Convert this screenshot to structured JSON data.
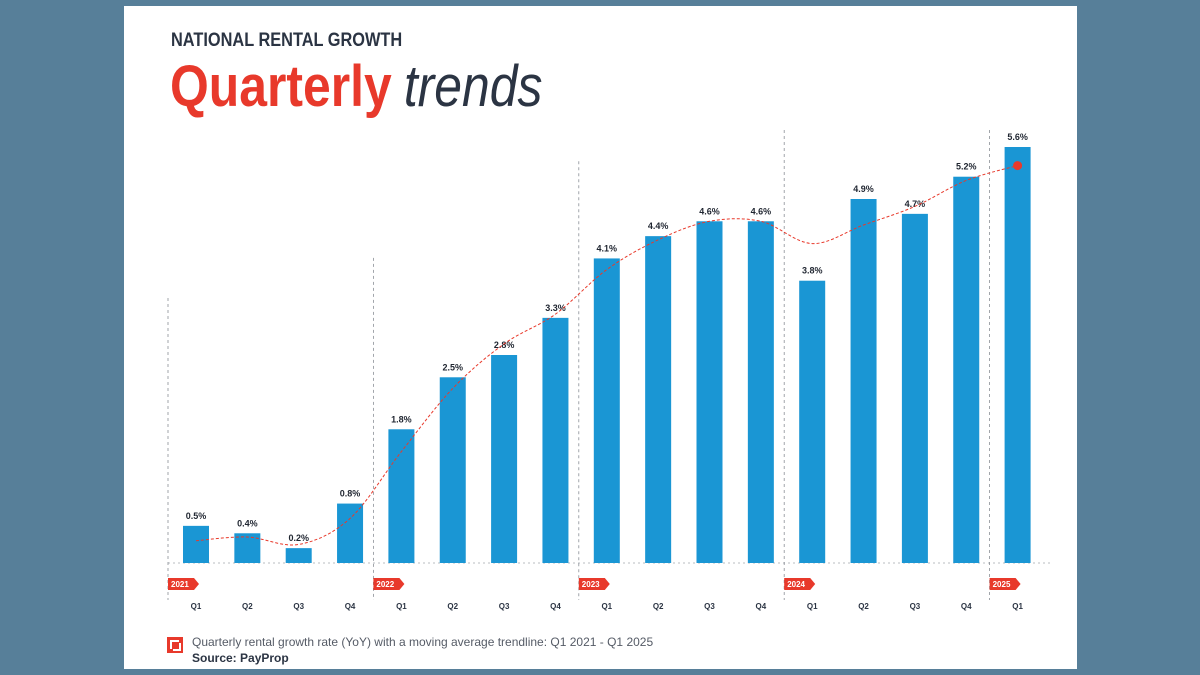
{
  "header": {
    "kicker": "NATIONAL RENTAL GROWTH",
    "title_main": "Quarterly",
    "title_accent": "trends"
  },
  "caption": {
    "text": "Quarterly rental growth rate (YoY) with a moving average trendline: Q1 2021 - Q1 2025",
    "source": "Source: PayProp"
  },
  "colors": {
    "bar": "#1a96d4",
    "trend": "#e8392b",
    "title_accent": "#e8392b",
    "title_dark": "#2b3443",
    "year_tag": "#e8392b",
    "background": "#577f99"
  },
  "chart_data": {
    "type": "bar",
    "title": "",
    "xlabel": "",
    "ylabel": "",
    "grid": false,
    "years": [
      {
        "label": "2021",
        "start": 0
      },
      {
        "label": "2022",
        "start": 4
      },
      {
        "label": "2023",
        "start": 8
      },
      {
        "label": "2024",
        "start": 12
      },
      {
        "label": "2025",
        "start": 16
      }
    ],
    "categories": [
      "Q1",
      "Q2",
      "Q3",
      "Q4",
      "Q1",
      "Q2",
      "Q3",
      "Q4",
      "Q1",
      "Q2",
      "Q3",
      "Q4",
      "Q1",
      "Q2",
      "Q3",
      "Q4",
      "Q1"
    ],
    "values": [
      0.5,
      0.4,
      0.2,
      0.8,
      1.8,
      2.5,
      2.8,
      3.3,
      4.1,
      4.4,
      4.6,
      4.6,
      3.8,
      4.9,
      4.7,
      5.2,
      5.6
    ],
    "labels": [
      "0.5%",
      "0.4%",
      "0.2%",
      "0.8%",
      "1.8%",
      "2.5%",
      "2.8%",
      "3.3%",
      "4.1%",
      "4.4%",
      "4.6%",
      "4.6%",
      "3.8%",
      "4.9%",
      "4.7%",
      "5.2%",
      "5.6%"
    ],
    "trendline": [
      0.3,
      0.35,
      0.25,
      0.6,
      1.5,
      2.35,
      2.95,
      3.35,
      3.95,
      4.35,
      4.6,
      4.6,
      4.3,
      4.55,
      4.8,
      5.15,
      5.35
    ],
    "ylim": [
      0,
      6
    ]
  }
}
